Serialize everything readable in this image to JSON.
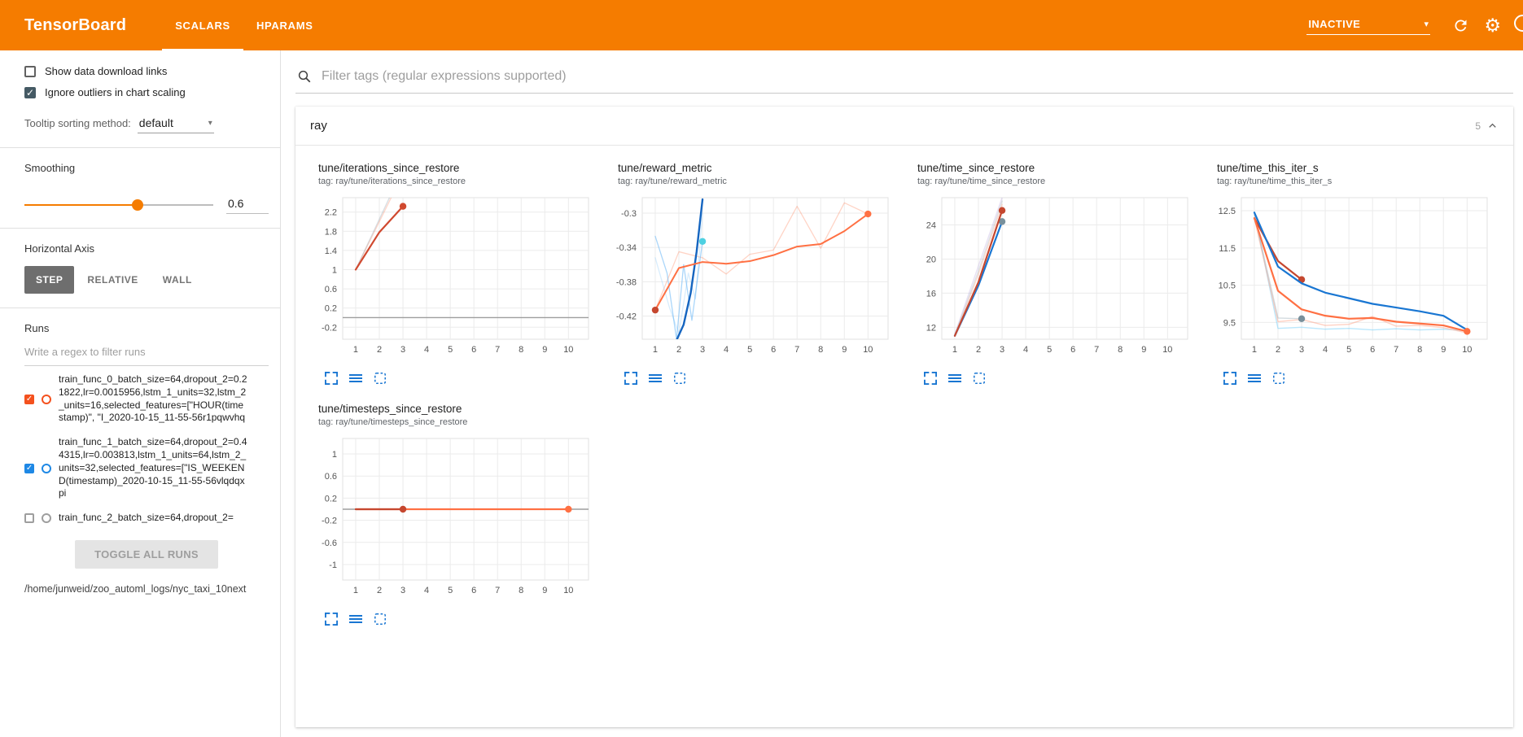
{
  "header": {
    "title": "TensorBoard",
    "tabs": [
      {
        "label": "SCALARS",
        "active": true
      },
      {
        "label": "HPARAMS",
        "active": false
      }
    ],
    "status_dropdown": "INACTIVE"
  },
  "icons": {
    "gear": "⚙",
    "caret_down": "▾",
    "check": "✓"
  },
  "sidebar": {
    "checkboxes": [
      {
        "label": "Show data download links",
        "checked": false
      },
      {
        "label": "Ignore outliers in chart scaling",
        "checked": true
      }
    ],
    "tooltip_sorting": {
      "label": "Tooltip sorting method:",
      "value": "default"
    },
    "smoothing": {
      "label": "Smoothing",
      "value": "0.6"
    },
    "horizontal_axis": {
      "label": "Horizontal Axis",
      "options": [
        {
          "label": "STEP",
          "selected": true
        },
        {
          "label": "RELATIVE",
          "selected": false
        },
        {
          "label": "WALL",
          "selected": false
        }
      ]
    },
    "runs": {
      "label": "Runs",
      "filter_placeholder": "Write a regex to filter runs",
      "items": [
        {
          "label": "train_func_0_batch_size=64,dropout_2=0.21822,lr=0.0015956,lstm_1_units=32,lstm_2_units=16,selected_features=[\"HOUR(timestamp)\", \"I_2020-10-15_11-55-56r1pqwvhq",
          "checked": true,
          "color": "#f4511e"
        },
        {
          "label": "train_func_1_batch_size=64,dropout_2=0.44315,lr=0.003813,lstm_1_units=64,lstm_2_units=32,selected_features=[\"IS_WEEKEND(timestamp)_2020-10-15_11-55-56vlqdqxpi",
          "checked": true,
          "color": "#1e88e5"
        },
        {
          "label": "train_func_2_batch_size=64,dropout_2=",
          "checked": false,
          "color": "#9e9e9e"
        }
      ],
      "toggle_all_label": "TOGGLE ALL RUNS",
      "log_dir": "/home/junweid/zoo_automl_logs/nyc_taxi_10next"
    }
  },
  "main": {
    "filter_placeholder": "Filter tags (regular expressions supported)",
    "section": {
      "title": "ray",
      "count": "5"
    },
    "chart_toolbar": [
      "expand-icon",
      "data-lines-icon",
      "pin-icon"
    ]
  },
  "chart_data": [
    {
      "type": "line",
      "title": "tune/iterations_since_restore",
      "tag": "tag: ray/tune/iterations_since_restore",
      "xticks": [
        1,
        2,
        3,
        4,
        5,
        6,
        7,
        8,
        9,
        10
      ],
      "yticks": [
        -0.2,
        0.2,
        0.6,
        1,
        1.4,
        1.8,
        2.2
      ],
      "xlim": [
        0.45,
        10.85
      ],
      "ylim": [
        -0.45,
        2.5
      ],
      "series": [
        {
          "name": "run0_raw",
          "color": "#ff7043",
          "width": 1.4,
          "opacity": 0.28,
          "points": [
            [
              1,
              1
            ],
            [
              2,
              2
            ],
            [
              3,
              3
            ]
          ]
        },
        {
          "name": "run1_raw",
          "color": "#90a4ae",
          "width": 1.4,
          "opacity": 0.35,
          "points": [
            [
              1,
              1
            ],
            [
              2,
              2.05
            ],
            [
              3,
              3.1
            ]
          ]
        },
        {
          "name": "run0_smoothed",
          "color": "#d0492f",
          "width": 2.2,
          "points": [
            [
              1,
              1
            ],
            [
              2,
              1.78
            ],
            [
              3,
              2.32
            ]
          ],
          "end_dot": true
        }
      ]
    },
    {
      "type": "line",
      "title": "tune/reward_metric",
      "tag": "tag: ray/tune/reward_metric",
      "xticks": [
        1,
        2,
        3,
        4,
        5,
        6,
        7,
        8,
        9,
        10
      ],
      "yticks": [
        -0.42,
        -0.38,
        -0.34,
        -0.3
      ],
      "xlim": [
        0.45,
        10.85
      ],
      "ylim": [
        -0.447,
        -0.282
      ],
      "series": [
        {
          "name": "run0_raw",
          "color": "#ff7043",
          "width": 1.3,
          "opacity": 0.3,
          "points": [
            [
              1,
              -0.413
            ],
            [
              2,
              -0.345
            ],
            [
              3,
              -0.352
            ],
            [
              4,
              -0.371
            ],
            [
              5,
              -0.348
            ],
            [
              6,
              -0.343
            ],
            [
              7,
              -0.292
            ],
            [
              8,
              -0.341
            ],
            [
              9,
              -0.288
            ],
            [
              10,
              -0.301
            ]
          ]
        },
        {
          "name": "run1_raw_b",
          "color": "#90caf9",
          "width": 1.3,
          "opacity": 0.35,
          "points": [
            [
              1,
              -0.352
            ],
            [
              1.6,
              -0.41
            ],
            [
              2,
              -0.44
            ],
            [
              2.4,
              -0.37
            ],
            [
              2.7,
              -0.4
            ],
            [
              3,
              -0.3
            ]
          ]
        },
        {
          "name": "run1_raw_a",
          "color": "#64b5f6",
          "width": 1.3,
          "opacity": 0.55,
          "points": [
            [
              1,
              -0.327
            ],
            [
              1.5,
              -0.37
            ],
            [
              1.9,
              -0.447
            ],
            [
              2.2,
              -0.36
            ],
            [
              2.55,
              -0.425
            ],
            [
              3,
              -0.333
            ]
          ],
          "end_dot": true,
          "dot_color": "#4dd0e1"
        },
        {
          "name": "run1_smoothed",
          "color": "#1565c0",
          "width": 2.4,
          "points": [
            [
              1.92,
              -0.447
            ],
            [
              2.2,
              -0.43
            ],
            [
              2.5,
              -0.393
            ],
            [
              2.75,
              -0.345
            ],
            [
              3,
              -0.284
            ]
          ]
        },
        {
          "name": "run0_smoothed",
          "color": "#ff7043",
          "width": 2,
          "points": [
            [
              1,
              -0.413
            ],
            [
              2,
              -0.364
            ],
            [
              3,
              -0.357
            ],
            [
              4,
              -0.359
            ],
            [
              5,
              -0.356
            ],
            [
              6,
              -0.349
            ],
            [
              7,
              -0.339
            ],
            [
              8,
              -0.336
            ],
            [
              9,
              -0.321
            ],
            [
              10,
              -0.301
            ]
          ],
          "end_dot": true
        },
        {
          "name": "run0_start_dot",
          "color": "#c5472f",
          "points": [
            [
              1,
              -0.413
            ]
          ],
          "end_dot": true
        }
      ]
    },
    {
      "type": "line",
      "title": "tune/time_since_restore",
      "tag": "tag: ray/tune/time_since_restore",
      "xticks": [
        1,
        2,
        3,
        4,
        5,
        6,
        7,
        8,
        9,
        10
      ],
      "yticks": [
        12,
        16,
        20,
        24
      ],
      "xlim": [
        0.45,
        10.85
      ],
      "ylim": [
        10.6,
        27.2
      ],
      "series": [
        {
          "name": "raw_lavender",
          "color": "#b39ddb",
          "width": 1.4,
          "opacity": 0.3,
          "points": [
            [
              1,
              11.2
            ],
            [
              2,
              19.2
            ],
            [
              3,
              27.2
            ]
          ]
        },
        {
          "name": "raw_orange",
          "color": "#ff7043",
          "width": 1.4,
          "opacity": 0.25,
          "points": [
            [
              1,
              11
            ],
            [
              2,
              18.2
            ],
            [
              3,
              26.4
            ]
          ]
        },
        {
          "name": "raw_gray",
          "color": "#90a4ae",
          "width": 1.4,
          "opacity": 0.3,
          "points": [
            [
              1,
              11.1
            ],
            [
              2,
              18.6
            ],
            [
              3,
              26.8
            ]
          ]
        },
        {
          "name": "run1_smoothed",
          "color": "#1976d2",
          "width": 2.2,
          "points": [
            [
              1,
              11
            ],
            [
              2,
              16.9
            ],
            [
              3,
              24.4
            ]
          ],
          "end_dot": true,
          "dot_color": "#78909c"
        },
        {
          "name": "run0_smoothed",
          "color": "#c5472f",
          "width": 2.2,
          "points": [
            [
              1,
              11
            ],
            [
              2,
              17.3
            ],
            [
              3,
              25.7
            ]
          ],
          "end_dot": true
        }
      ]
    },
    {
      "type": "line",
      "title": "tune/time_this_iter_s",
      "tag": "tag: ray/tune/time_this_iter_s",
      "xticks": [
        1,
        2,
        3,
        4,
        5,
        6,
        7,
        8,
        9,
        10
      ],
      "yticks": [
        9.5,
        10.5,
        11.5,
        12.5
      ],
      "xlim": [
        0.45,
        10.85
      ],
      "ylim": [
        9.05,
        12.85
      ],
      "series": [
        {
          "name": "run1_raw",
          "color": "#81d4fa",
          "width": 1.4,
          "opacity": 0.55,
          "points": [
            [
              1,
              12.45
            ],
            [
              2,
              9.34
            ],
            [
              3,
              9.37
            ],
            [
              4,
              9.32
            ],
            [
              5,
              9.34
            ],
            [
              6,
              9.3
            ],
            [
              7,
              9.33
            ],
            [
              8,
              9.3
            ],
            [
              9,
              9.32
            ],
            [
              10,
              9.28
            ]
          ]
        },
        {
          "name": "run0_raw",
          "color": "#ffab91",
          "width": 1.4,
          "opacity": 0.55,
          "points": [
            [
              1,
              12.3
            ],
            [
              2,
              9.52
            ],
            [
              3,
              9.58
            ],
            [
              4,
              9.42
            ],
            [
              5,
              9.45
            ],
            [
              6,
              9.66
            ],
            [
              7,
              9.4
            ],
            [
              8,
              9.42
            ],
            [
              9,
              9.36
            ],
            [
              10,
              9.22
            ]
          ]
        },
        {
          "name": "raw_gray",
          "color": "#90a4ae",
          "width": 1.4,
          "opacity": 0.4,
          "points": [
            [
              1,
              12.4
            ],
            [
              2,
              9.62
            ],
            [
              3,
              9.6
            ]
          ],
          "end_dot": true,
          "dot_color": "#78909c"
        },
        {
          "name": "run0_smoothed",
          "color": "#c5472f",
          "width": 2.2,
          "points": [
            [
              1,
              12.3
            ],
            [
              2,
              11.15
            ],
            [
              3,
              10.65
            ]
          ],
          "end_dot": true
        },
        {
          "name": "run1_smoothed",
          "color": "#1976d2",
          "width": 2.2,
          "points": [
            [
              1,
              12.45
            ],
            [
              2,
              11.0
            ],
            [
              3,
              10.55
            ],
            [
              4,
              10.3
            ],
            [
              5,
              10.15
            ],
            [
              6,
              10.0
            ],
            [
              7,
              9.9
            ],
            [
              8,
              9.8
            ],
            [
              9,
              9.68
            ],
            [
              10,
              9.3
            ]
          ]
        },
        {
          "name": "run2_smoothed",
          "color": "#ff7043",
          "width": 2.2,
          "points": [
            [
              1,
              12.3
            ],
            [
              2,
              10.35
            ],
            [
              3,
              9.85
            ],
            [
              4,
              9.68
            ],
            [
              5,
              9.6
            ],
            [
              6,
              9.62
            ],
            [
              7,
              9.52
            ],
            [
              8,
              9.47
            ],
            [
              9,
              9.42
            ],
            [
              10,
              9.26
            ]
          ],
          "end_dot": true
        }
      ]
    },
    {
      "type": "line",
      "title": "tune/timesteps_since_restore",
      "tag": "tag: ray/tune/timesteps_since_restore",
      "xticks": [
        1,
        2,
        3,
        4,
        5,
        6,
        7,
        8,
        9,
        10
      ],
      "yticks": [
        -1,
        -0.6,
        -0.2,
        0.2,
        0.6,
        1
      ],
      "xlim": [
        0.45,
        10.85
      ],
      "ylim": [
        -1.28,
        1.28
      ],
      "series": [
        {
          "name": "run1_smoothed",
          "color": "#ff7043",
          "width": 2.2,
          "points": [
            [
              1,
              0
            ],
            [
              10,
              0
            ]
          ],
          "end_dot": true
        },
        {
          "name": "run0_smoothed",
          "color": "#c5472f",
          "width": 2.2,
          "points": [
            [
              1,
              0
            ],
            [
              3,
              0
            ]
          ],
          "end_dot": true
        }
      ]
    }
  ]
}
